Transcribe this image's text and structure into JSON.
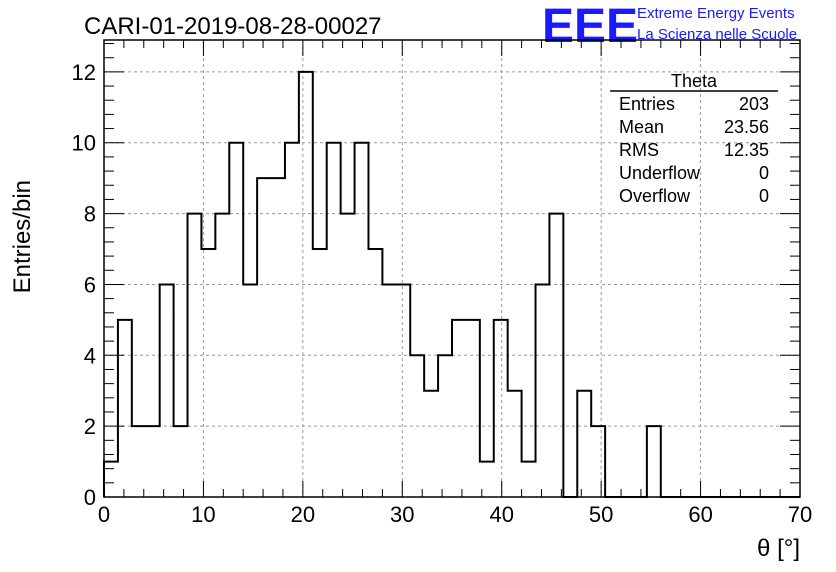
{
  "chart_data": {
    "type": "bar",
    "style": "step-histogram",
    "title": "CARI-01-2019-08-28-00027",
    "xlabel": "θ [°]",
    "ylabel": "Entries/bin",
    "xlim": [
      0,
      70
    ],
    "ylim": [
      0,
      12.9
    ],
    "x_ticks": [
      0,
      10,
      20,
      30,
      40,
      50,
      60,
      70
    ],
    "y_ticks": [
      0,
      2,
      4,
      6,
      8,
      10,
      12
    ],
    "grid": true,
    "bin_width": 1.4,
    "values": [
      1,
      5,
      2,
      2,
      6,
      2,
      8,
      7,
      8,
      10,
      6,
      9,
      9,
      10,
      12,
      7,
      10,
      8,
      10,
      7,
      6,
      6,
      4,
      3,
      4,
      5,
      5,
      1,
      5,
      3,
      1,
      6,
      8,
      0,
      3,
      2,
      0,
      0,
      0,
      2,
      0,
      0,
      0,
      0,
      0,
      0,
      0,
      0,
      0,
      0
    ],
    "line_color": "#000000",
    "stats_box": {
      "name": "Theta",
      "rows": [
        {
          "label": "Entries",
          "value": "203"
        },
        {
          "label": "Mean",
          "value": "23.56"
        },
        {
          "label": "RMS",
          "value": "12.35"
        },
        {
          "label": "Underflow",
          "value": "0"
        },
        {
          "label": "Overflow",
          "value": "0"
        }
      ]
    }
  },
  "logo": {
    "mark": "EEE",
    "line1": "Extreme Energy Events",
    "line2": "La Scienza nelle Scuole",
    "color": "#1a1aff"
  }
}
